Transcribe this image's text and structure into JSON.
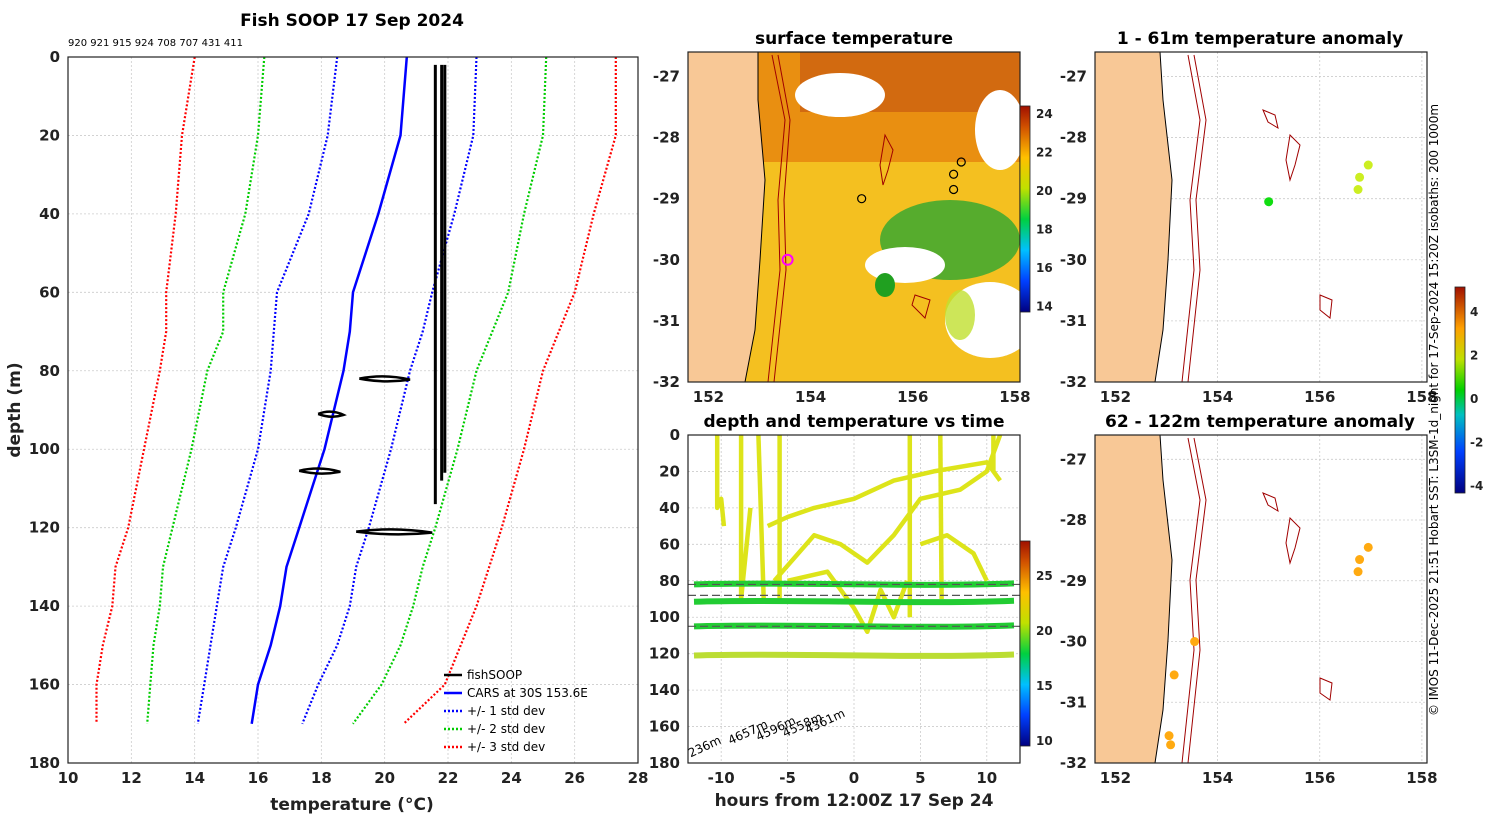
{
  "chart_data": [
    {
      "type": "line",
      "title": "Fish SOOP 17 Sep 2024",
      "header_ids": "920 921 915 924 708 707 431 411",
      "xlabel": "temperature (°C)",
      "ylabel": "depth (m)",
      "xlim": [
        10,
        28
      ],
      "ylim": [
        180,
        0
      ],
      "xticks": [
        10,
        12,
        14,
        16,
        18,
        20,
        22,
        24,
        26,
        28
      ],
      "yticks": [
        0,
        20,
        40,
        60,
        80,
        100,
        120,
        140,
        160,
        180
      ],
      "depths": [
        0,
        20,
        40,
        60,
        70,
        80,
        100,
        120,
        130,
        140,
        150,
        160,
        170
      ],
      "cars_mean": [
        20.7,
        20.5,
        19.8,
        19.0,
        18.9,
        18.7,
        18.1,
        17.3,
        16.9,
        16.7,
        16.4,
        16.0,
        15.8
      ],
      "legend": [
        "fishSOOP",
        "CARS at 30S 153.6E",
        "+/- 1 std dev",
        "+/- 2 std dev",
        "+/- 3 std dev"
      ],
      "series": [
        {
          "name": "CARS at 30S 153.6E",
          "color": "#0000ff",
          "style": "solid",
          "values": [
            20.7,
            20.5,
            19.8,
            19.0,
            18.9,
            18.7,
            18.1,
            17.3,
            16.9,
            16.7,
            16.4,
            16.0,
            15.8
          ]
        },
        {
          "name": "+1 std dev",
          "color": "#0000ff",
          "style": "dotted",
          "values": [
            22.9,
            22.8,
            22.2,
            21.5,
            21.2,
            20.8,
            20.2,
            19.5,
            19.1,
            18.9,
            18.5,
            17.9,
            17.4
          ]
        },
        {
          "name": "-1 std dev",
          "color": "#0000ff",
          "style": "dotted",
          "values": [
            18.5,
            18.2,
            17.6,
            16.6,
            16.5,
            16.4,
            16.0,
            15.3,
            14.9,
            14.7,
            14.5,
            14.3,
            14.1
          ]
        },
        {
          "name": "+2 std dev",
          "color": "#00cc00",
          "style": "dotted",
          "values": [
            25.1,
            25.0,
            24.4,
            23.9,
            23.4,
            22.9,
            22.3,
            21.6,
            21.2,
            20.9,
            20.5,
            19.9,
            19.0
          ]
        },
        {
          "name": "-2 std dev",
          "color": "#00cc00",
          "style": "dotted",
          "values": [
            16.2,
            16.0,
            15.6,
            14.9,
            14.9,
            14.4,
            13.9,
            13.3,
            13.0,
            12.9,
            12.7,
            12.6,
            12.5
          ]
        },
        {
          "name": "+3 std dev",
          "color": "#ff0000",
          "style": "dotted",
          "values": [
            27.3,
            27.3,
            26.6,
            26.0,
            25.5,
            25.0,
            24.4,
            23.7,
            23.3,
            22.9,
            22.4,
            21.9,
            20.6
          ]
        },
        {
          "name": "-3 std dev",
          "color": "#ff0000",
          "style": "dotted",
          "values": [
            14.0,
            13.6,
            13.4,
            13.1,
            13.1,
            12.9,
            12.4,
            11.9,
            11.5,
            11.4,
            11.1,
            10.9,
            10.9
          ]
        }
      ],
      "fishsoop_profiles": [
        {
          "temp": 21.6,
          "top": 2,
          "bottom": 114
        },
        {
          "temp": 21.8,
          "top": 2,
          "bottom": 108
        },
        {
          "temp": 21.9,
          "top": 2,
          "bottom": 106
        }
      ],
      "fishsoop_clusters": [
        {
          "t0": 19.2,
          "t1": 20.8,
          "depth": 82
        },
        {
          "t0": 17.9,
          "t1": 18.7,
          "depth": 91
        },
        {
          "t0": 17.3,
          "t1": 18.6,
          "depth": 105.5
        },
        {
          "t0": 19.1,
          "t1": 21.5,
          "depth": 121
        }
      ]
    },
    {
      "type": "heatmap",
      "title": "surface temperature",
      "xticks": [
        152,
        154,
        156,
        158
      ],
      "yticks": [
        -27,
        -28,
        -29,
        -30,
        -31,
        -32
      ],
      "xlim": [
        151.6,
        158.1
      ],
      "ylim": [
        -32,
        -26.6
      ],
      "colorbar_ticks": [
        24,
        22,
        20,
        18,
        16,
        14
      ],
      "stations": [
        [
          155.0,
          -29.0
        ],
        [
          156.8,
          -28.85
        ],
        [
          156.8,
          -28.6
        ],
        [
          156.95,
          -28.4
        ]
      ],
      "highlight": [
        153.55,
        -30.0
      ]
    },
    {
      "type": "scatter",
      "title": "1 - 61m temperature anomaly",
      "xticks": [
        152,
        154,
        156,
        158
      ],
      "yticks": [
        -27,
        -28,
        -29,
        -30,
        -31,
        -32
      ],
      "xlim": [
        151.6,
        158.1
      ],
      "ylim": [
        -32,
        -26.6
      ],
      "points": [
        {
          "lon": 155.0,
          "lat": -29.05,
          "anomaly": 0.0
        },
        {
          "lon": 156.75,
          "lat": -28.85,
          "anomaly": 1.8
        },
        {
          "lon": 156.78,
          "lat": -28.65,
          "anomaly": 1.9
        },
        {
          "lon": 156.95,
          "lat": -28.45,
          "anomaly": 1.8
        }
      ]
    },
    {
      "type": "line",
      "title": "depth and temperature vs time",
      "xlabel": "hours from 12:00Z 17 Sep 24",
      "xlim": [
        -12.5,
        12.5
      ],
      "ylim": [
        180,
        0
      ],
      "xticks": [
        -10,
        -5,
        0,
        5,
        10
      ],
      "yticks": [
        0,
        20,
        40,
        60,
        80,
        100,
        120,
        140,
        160,
        180
      ],
      "colorbar_ticks": [
        25,
        20,
        15,
        10
      ],
      "depth_labels": [
        "236m",
        "4657m",
        "4596m",
        "4558m",
        "4361m"
      ],
      "bands": [
        {
          "depth": 82,
          "color": "#22cc33"
        },
        {
          "depth": 91.5,
          "color": "#22cc33"
        },
        {
          "depth": 105,
          "color": "#22cc33"
        },
        {
          "depth": 121,
          "color": "#bbdd33"
        }
      ],
      "dashed_lines": [
        82,
        88,
        105
      ]
    },
    {
      "type": "scatter",
      "title": "62 - 122m temperature anomaly",
      "xticks": [
        152,
        154,
        156,
        158
      ],
      "yticks": [
        -27,
        -28,
        -29,
        -30,
        -31,
        -32
      ],
      "xlim": [
        151.6,
        158.1
      ],
      "ylim": [
        -32,
        -26.6
      ],
      "points": [
        {
          "lon": 156.75,
          "lat": -28.85,
          "anomaly": 2.6
        },
        {
          "lon": 156.78,
          "lat": -28.65,
          "anomaly": 2.5
        },
        {
          "lon": 156.95,
          "lat": -28.45,
          "anomaly": 2.5
        },
        {
          "lon": 153.55,
          "lat": -30.0,
          "anomaly": 2.5
        },
        {
          "lon": 153.15,
          "lat": -30.55,
          "anomaly": 2.5
        },
        {
          "lon": 153.05,
          "lat": -31.55,
          "anomaly": 2.5
        },
        {
          "lon": 153.08,
          "lat": -31.7,
          "anomaly": 2.5
        }
      ],
      "colorbar_ticks": [
        4,
        2,
        0,
        -2,
        -4
      ]
    }
  ],
  "side_text": "© IMOS 11-Dec-2025 21:51 Hobart SST: L3SM-1d_night for 17-Sep-2024 15:20Z isobaths: 200  1000m"
}
